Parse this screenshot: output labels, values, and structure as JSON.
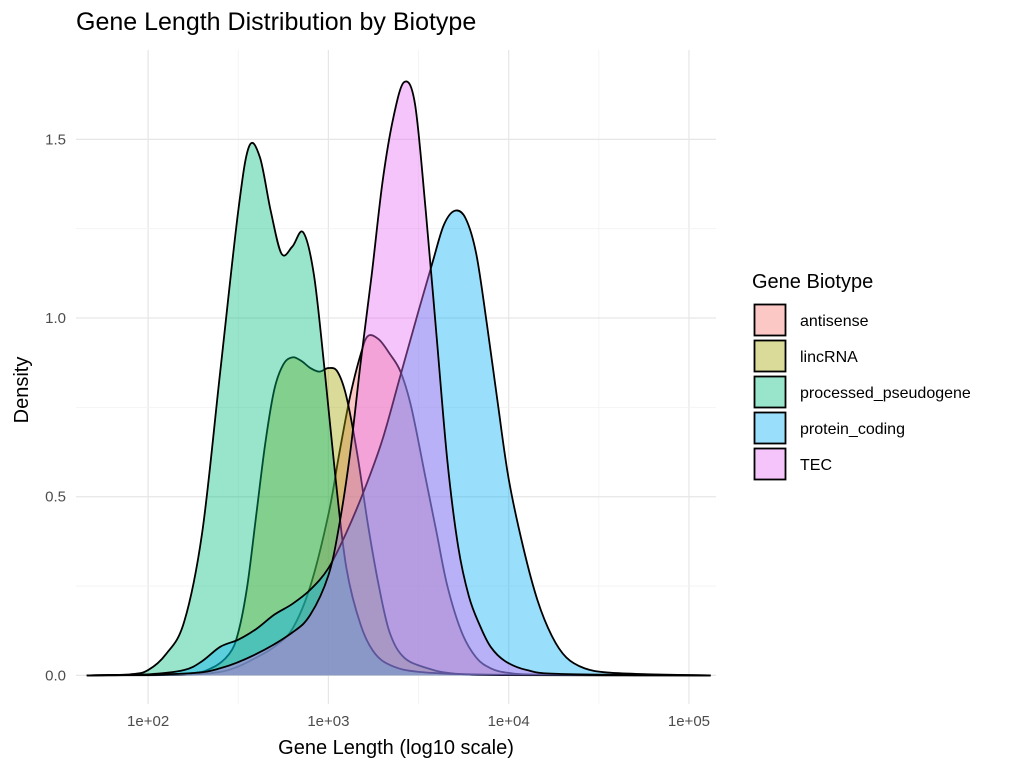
{
  "chart_data": {
    "type": "area",
    "title": "Gene Length Distribution by Biotype",
    "xlabel": "Gene Length (log10 scale)",
    "ylabel": "Density",
    "x_scale": "log10",
    "xlim_log10": [
      1.6,
      5.15
    ],
    "ylim": [
      -0.08,
      1.75
    ],
    "x_ticks": [
      {
        "log10": 2,
        "label": "1e+02"
      },
      {
        "log10": 3,
        "label": "1e+03"
      },
      {
        "log10": 4,
        "label": "1e+04"
      },
      {
        "log10": 5,
        "label": "1e+05"
      }
    ],
    "y_ticks": [
      {
        "value": 0.0,
        "label": "0.0"
      },
      {
        "value": 0.5,
        "label": "0.5"
      },
      {
        "value": 1.0,
        "label": "1.0"
      },
      {
        "value": 1.5,
        "label": "1.5"
      }
    ],
    "grid": true,
    "legend_position": "right",
    "legend_title": "Gene Biotype",
    "series": [
      {
        "name": "antisense",
        "color": "#F8766D",
        "points": [
          [
            1.66,
            0
          ],
          [
            2.2,
            0.002
          ],
          [
            2.4,
            0.01
          ],
          [
            2.5,
            0.025
          ],
          [
            2.6,
            0.05
          ],
          [
            2.7,
            0.08
          ],
          [
            2.8,
            0.13
          ],
          [
            2.9,
            0.25
          ],
          [
            3.0,
            0.45
          ],
          [
            3.06,
            0.62
          ],
          [
            3.12,
            0.78
          ],
          [
            3.18,
            0.9
          ],
          [
            3.22,
            0.95
          ],
          [
            3.28,
            0.94
          ],
          [
            3.34,
            0.9
          ],
          [
            3.4,
            0.85
          ],
          [
            3.46,
            0.75
          ],
          [
            3.54,
            0.55
          ],
          [
            3.6,
            0.4
          ],
          [
            3.66,
            0.25
          ],
          [
            3.74,
            0.12
          ],
          [
            3.82,
            0.05
          ],
          [
            3.9,
            0.02
          ],
          [
            4.0,
            0.007
          ],
          [
            4.2,
            0.002
          ],
          [
            5.12,
            0
          ]
        ]
      },
      {
        "name": "lincRNA",
        "color": "#A3A500",
        "points": [
          [
            1.66,
            0
          ],
          [
            2.2,
            0.005
          ],
          [
            2.35,
            0.02
          ],
          [
            2.45,
            0.06
          ],
          [
            2.5,
            0.12
          ],
          [
            2.55,
            0.25
          ],
          [
            2.6,
            0.45
          ],
          [
            2.65,
            0.65
          ],
          [
            2.7,
            0.8
          ],
          [
            2.75,
            0.87
          ],
          [
            2.8,
            0.89
          ],
          [
            2.85,
            0.88
          ],
          [
            2.9,
            0.86
          ],
          [
            2.95,
            0.85
          ],
          [
            3.0,
            0.86
          ],
          [
            3.05,
            0.85
          ],
          [
            3.1,
            0.78
          ],
          [
            3.16,
            0.62
          ],
          [
            3.22,
            0.42
          ],
          [
            3.28,
            0.25
          ],
          [
            3.34,
            0.12
          ],
          [
            3.42,
            0.05
          ],
          [
            3.55,
            0.02
          ],
          [
            3.7,
            0.005
          ],
          [
            4.0,
            0.001
          ],
          [
            5.12,
            0
          ]
        ]
      },
      {
        "name": "processed_pseudogene",
        "color": "#00BF7D",
        "points": [
          [
            1.66,
            0
          ],
          [
            1.9,
            0.003
          ],
          [
            2.0,
            0.015
          ],
          [
            2.1,
            0.06
          ],
          [
            2.2,
            0.15
          ],
          [
            2.3,
            0.4
          ],
          [
            2.4,
            0.85
          ],
          [
            2.5,
            1.3
          ],
          [
            2.56,
            1.48
          ],
          [
            2.62,
            1.45
          ],
          [
            2.68,
            1.3
          ],
          [
            2.74,
            1.18
          ],
          [
            2.8,
            1.2
          ],
          [
            2.86,
            1.24
          ],
          [
            2.92,
            1.12
          ],
          [
            2.98,
            0.85
          ],
          [
            3.04,
            0.55
          ],
          [
            3.1,
            0.3
          ],
          [
            3.18,
            0.14
          ],
          [
            3.26,
            0.06
          ],
          [
            3.36,
            0.025
          ],
          [
            3.5,
            0.01
          ],
          [
            3.8,
            0.003
          ],
          [
            4.4,
            0.001
          ],
          [
            5.12,
            0
          ]
        ]
      },
      {
        "name": "protein_coding",
        "color": "#00B0F6",
        "points": [
          [
            1.66,
            0
          ],
          [
            2.0,
            0.003
          ],
          [
            2.2,
            0.015
          ],
          [
            2.3,
            0.04
          ],
          [
            2.4,
            0.08
          ],
          [
            2.5,
            0.1
          ],
          [
            2.6,
            0.13
          ],
          [
            2.7,
            0.17
          ],
          [
            2.8,
            0.2
          ],
          [
            2.9,
            0.24
          ],
          [
            3.0,
            0.3
          ],
          [
            3.1,
            0.4
          ],
          [
            3.2,
            0.52
          ],
          [
            3.3,
            0.66
          ],
          [
            3.4,
            0.84
          ],
          [
            3.5,
            1.02
          ],
          [
            3.58,
            1.16
          ],
          [
            3.64,
            1.26
          ],
          [
            3.7,
            1.3
          ],
          [
            3.76,
            1.28
          ],
          [
            3.82,
            1.18
          ],
          [
            3.88,
            0.98
          ],
          [
            3.94,
            0.76
          ],
          [
            4.0,
            0.55
          ],
          [
            4.08,
            0.36
          ],
          [
            4.16,
            0.21
          ],
          [
            4.24,
            0.11
          ],
          [
            4.32,
            0.05
          ],
          [
            4.42,
            0.02
          ],
          [
            4.55,
            0.008
          ],
          [
            4.8,
            0.003
          ],
          [
            5.12,
            0
          ]
        ]
      },
      {
        "name": "TEC",
        "color": "#E76BF3",
        "points": [
          [
            1.66,
            0
          ],
          [
            2.2,
            0.005
          ],
          [
            2.4,
            0.02
          ],
          [
            2.6,
            0.06
          ],
          [
            2.8,
            0.12
          ],
          [
            2.9,
            0.17
          ],
          [
            3.0,
            0.28
          ],
          [
            3.06,
            0.42
          ],
          [
            3.12,
            0.62
          ],
          [
            3.18,
            0.88
          ],
          [
            3.24,
            1.12
          ],
          [
            3.3,
            1.38
          ],
          [
            3.36,
            1.56
          ],
          [
            3.42,
            1.66
          ],
          [
            3.48,
            1.6
          ],
          [
            3.54,
            1.3
          ],
          [
            3.6,
            0.95
          ],
          [
            3.66,
            0.6
          ],
          [
            3.72,
            0.36
          ],
          [
            3.78,
            0.22
          ],
          [
            3.84,
            0.14
          ],
          [
            3.9,
            0.08
          ],
          [
            3.98,
            0.04
          ],
          [
            4.1,
            0.015
          ],
          [
            4.3,
            0.004
          ],
          [
            5.12,
            0
          ]
        ]
      }
    ]
  }
}
